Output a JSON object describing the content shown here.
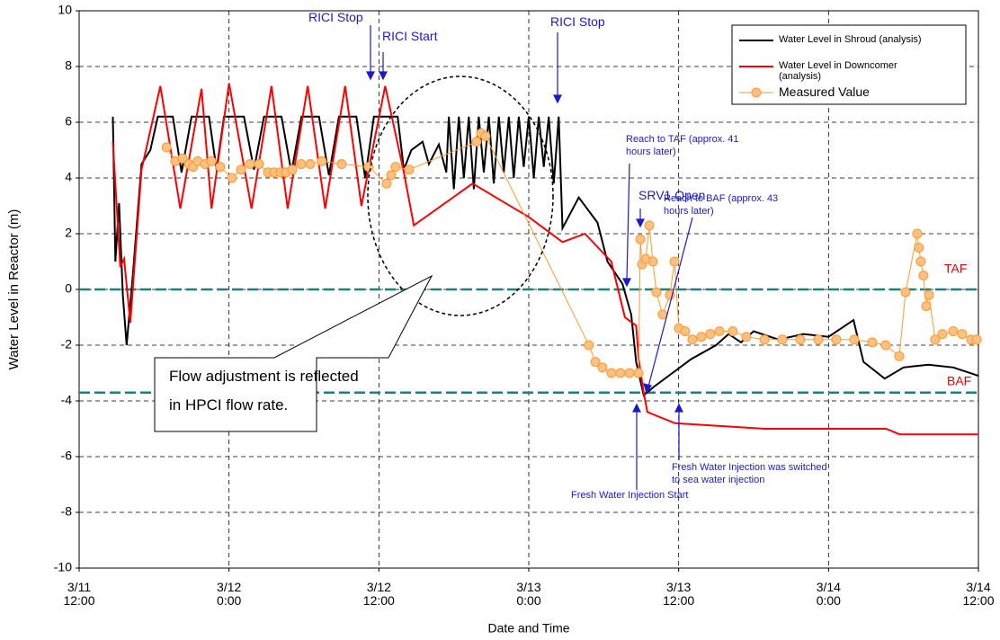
{
  "chart_data": {
    "type": "line",
    "xlabel": "Date and Time",
    "ylabel": "Water Level in Reactor (m)",
    "xlim": [
      "3/11 12:00",
      "3/14 12:00"
    ],
    "xticks": [
      "3/11 12:00",
      "3/12 0:00",
      "3/12 12:00",
      "3/13 0:00",
      "3/13 12:00",
      "3/14 0:00",
      "3/14 12:00"
    ],
    "ylim": [
      -10,
      10
    ],
    "yticks": [
      -10,
      -8,
      -6,
      -4,
      -2,
      0,
      2,
      4,
      6,
      8,
      10
    ],
    "grid": true,
    "legend": "upper right",
    "series": [
      {
        "name": "Water Level in Shroud (analysis)",
        "color": "#000000",
        "marker": false,
        "x": [
          "3/11 14:42",
          "3/11 14:54",
          "3/11 15:12",
          "3/11 15:30",
          "3/11 15:48",
          "3/11 16:18",
          "3/11 17:00",
          "3/11 17:42",
          "3/11 18:18",
          "3/11 19:30",
          "3/11 20:12",
          "3/11 21:00",
          "3/11 22:24",
          "3/11 23:00",
          "3/11 23:36",
          "3/12 1:12",
          "3/12 2:00",
          "3/12 2:48",
          "3/12 4:12",
          "3/12 5:00",
          "3/12 5:48",
          "3/12 7:12",
          "3/12 8:00",
          "3/12 8:48",
          "3/12 10:12",
          "3/12 10:54",
          "3/12 11:36",
          "3/12 13:30",
          "3/12 14:00",
          "3/12 14:36",
          "3/12 15:30",
          "3/12 16:00",
          "3/12 16:48",
          "3/12 17:24",
          "3/12 17:36",
          "3/12 18:00",
          "3/12 18:24",
          "3/12 18:48",
          "3/12 19:12",
          "3/12 19:36",
          "3/12 20:00",
          "3/12 20:24",
          "3/12 20:48",
          "3/12 21:12",
          "3/12 21:36",
          "3/12 22:00",
          "3/12 22:24",
          "3/12 22:48",
          "3/12 23:12",
          "3/12 23:36",
          "3/13 0:00",
          "3/13 0:24",
          "3/13 0:48",
          "3/13 1:12",
          "3/13 1:36",
          "3/13 2:00",
          "3/13 2:24",
          "3/13 2:42",
          "3/13 4:00",
          "3/13 5:30",
          "3/13 6:18",
          "3/13 7:30",
          "3/13 8:12",
          "3/13 8:36",
          "3/13 9:12",
          "3/13 10:00",
          "3/13 11:30",
          "3/13 13:00",
          "3/13 15:00",
          "3/13 16:00",
          "3/13 17:00",
          "3/13 18:00",
          "3/13 20:00",
          "3/13 22:00",
          "3/14 0:00",
          "3/14 2:00",
          "3/14 2:48",
          "3/14 4:30",
          "3/14 6:00",
          "3/14 8:00",
          "3/14 10:00",
          "3/14 12:00"
        ],
        "values": [
          6.2,
          1.0,
          3.1,
          -0.2,
          -2.0,
          0.5,
          4.5,
          5.0,
          6.2,
          6.2,
          4.2,
          6.2,
          6.2,
          4.3,
          6.2,
          6.2,
          4.3,
          6.2,
          6.2,
          4.2,
          6.2,
          6.2,
          4.1,
          6.2,
          6.2,
          4.0,
          6.2,
          6.2,
          4.3,
          5.0,
          5.3,
          4.5,
          5.2,
          4.2,
          6.2,
          3.6,
          6.2,
          4.0,
          6.2,
          3.6,
          6.2,
          4.2,
          6.2,
          3.8,
          6.2,
          4.2,
          6.2,
          4.0,
          6.2,
          4.4,
          6.2,
          4.0,
          6.2,
          4.4,
          6.2,
          3.8,
          6.2,
          2.2,
          3.3,
          2.4,
          1.0,
          0.2,
          -0.9,
          -2.6,
          -3.8,
          -3.5,
          -3.0,
          -2.5,
          -2.0,
          -1.6,
          -1.9,
          -1.5,
          -1.8,
          -1.6,
          -1.7,
          -1.1,
          -2.6,
          -3.2,
          -2.8,
          -2.7,
          -2.8,
          -3.1
        ]
      },
      {
        "name": "Water Level in Downcomer (analysis)",
        "color": "#ff0000",
        "marker": false,
        "x": [
          "3/11 14:42",
          "3/11 15:18",
          "3/11 15:36",
          "3/11 16:06",
          "3/11 17:00",
          "3/11 18:30",
          "3/11 20:06",
          "3/11 21:48",
          "3/11 22:36",
          "3/12 0:00",
          "3/12 1:48",
          "3/12 3:24",
          "3/12 4:42",
          "3/12 6:18",
          "3/12 7:42",
          "3/12 9:18",
          "3/12 10:36",
          "3/12 12:30",
          "3/12 14:00",
          "3/12 14:48",
          "3/12 19:30",
          "3/13 0:00",
          "3/13 2:42",
          "3/13 4:30",
          "3/13 6:36",
          "3/13 7:42",
          "3/13 8:36",
          "3/13 8:48",
          "3/13 9:12",
          "3/13 9:30",
          "3/13 11:42",
          "3/13 18:54",
          "3/14 4:36",
          "3/14 5:42",
          "3/14 12:00"
        ],
        "values": [
          5.3,
          0.8,
          1.1,
          -1.2,
          4.3,
          7.3,
          2.9,
          7.2,
          2.9,
          7.4,
          2.9,
          7.3,
          2.9,
          7.3,
          2.9,
          7.3,
          3.0,
          7.3,
          4.2,
          2.3,
          3.8,
          2.6,
          1.7,
          2.0,
          1.0,
          -1.0,
          -1.3,
          -2.5,
          -3.7,
          -4.4,
          -4.8,
          -5.0,
          -5.0,
          -5.2,
          -5.2
        ]
      },
      {
        "name": "Measured Value",
        "color": "#ff9933",
        "marker": true,
        "marker_fill": "#ffc080",
        "x": [
          "3/11 19:00",
          "3/11 19:42",
          "3/11 20:17",
          "3/11 20:47",
          "3/11 21:08",
          "3/11 21:30",
          "3/11 22:05",
          "3/11 22:35",
          "3/11 23:18",
          "3/12 0:14",
          "3/12 0:58",
          "3/12 1:41",
          "3/12 2:24",
          "3/12 3:07",
          "3/12 3:37",
          "3/12 4:08",
          "3/12 4:34",
          "3/12 5:04",
          "3/12 5:47",
          "3/12 6:30",
          "3/12 7:26",
          "3/12 9:01",
          "3/12 11:11",
          "3/12 12:37",
          "3/12 12:59",
          "3/12 13:20",
          "3/12 14:25",
          "3/12 19:49",
          "3/12 20:11",
          "3/12 20:32",
          "3/13 4:49",
          "3/13 5:20",
          "3/13 5:54",
          "3/13 6:37",
          "3/13 7:20",
          "3/13 8:04",
          "3/13 8:47",
          "3/13 8:56",
          "3/13 9:04",
          "3/13 9:22",
          "3/13 9:39",
          "3/13 9:56",
          "3/13 10:13",
          "3/13 10:43",
          "3/13 11:18",
          "3/13 11:40",
          "3/13 12:01",
          "3/13 12:31",
          "3/13 13:06",
          "3/13 13:49",
          "3/13 14:32",
          "3/13 15:16",
          "3/13 16:20",
          "3/13 17:25",
          "3/13 18:52",
          "3/13 20:18",
          "3/13 21:44",
          "3/13 23:11",
          "3/14 0:37",
          "3/14 2:04",
          "3/14 3:30",
          "3/14 4:35",
          "3/14 5:40",
          "3/14 6:10",
          "3/14 7:06",
          "3/14 7:14",
          "3/14 7:23",
          "3/14 7:36",
          "3/14 7:49",
          "3/14 8:02",
          "3/14 8:32",
          "3/14 9:07",
          "3/14 9:59",
          "3/14 10:42",
          "3/14 11:25",
          "3/14 11:52"
        ],
        "values": [
          5.1,
          4.6,
          4.7,
          4.5,
          4.4,
          4.6,
          4.5,
          4.6,
          4.4,
          4.0,
          4.3,
          4.5,
          4.5,
          4.2,
          4.2,
          4.2,
          4.2,
          4.3,
          4.5,
          4.5,
          4.6,
          4.5,
          4.4,
          3.8,
          4.1,
          4.4,
          4.3,
          5.3,
          5.6,
          5.5,
          -2.0,
          -2.6,
          -2.8,
          -3.0,
          -3.0,
          -3.0,
          -3.0,
          1.8,
          0.9,
          1.1,
          2.3,
          1.0,
          -0.1,
          -0.9,
          -0.2,
          1.0,
          -1.4,
          -1.5,
          -1.8,
          -1.7,
          -1.6,
          -1.5,
          -1.5,
          -1.7,
          -1.8,
          -1.8,
          -1.8,
          -1.8,
          -1.8,
          -1.8,
          -1.9,
          -2.0,
          -2.4,
          -0.1,
          2.0,
          1.5,
          1.0,
          0.5,
          -0.6,
          -0.2,
          -1.8,
          -1.6,
          -1.5,
          -1.6,
          -1.8,
          -1.8
        ]
      }
    ],
    "hlines": [
      {
        "value": 0,
        "label": "TAF",
        "color": "#1a8080"
      },
      {
        "value": -3.7,
        "label": "BAF",
        "color": "#1a8080"
      }
    ],
    "annotations": [
      {
        "text": [
          "RICI Stop"
        ]
      },
      {
        "text": [
          "RICI Start"
        ]
      },
      {
        "text": [
          "RICI Stop"
        ]
      },
      {
        "text": [
          "Reach to TAF (approx. 41",
          "hours later)"
        ]
      },
      {
        "text": [
          "SRV1 Open"
        ]
      },
      {
        "text": [
          "Reach to BAF (approx. 43",
          "hours later)"
        ]
      },
      {
        "text": [
          "Fresh Water Injection Start"
        ]
      },
      {
        "text": [
          "Fresh Water Injection was switched",
          "to sea water injection"
        ]
      },
      {
        "text": [
          "Flow adjustment is reflected",
          "in HPCI flow rate."
        ]
      }
    ]
  }
}
